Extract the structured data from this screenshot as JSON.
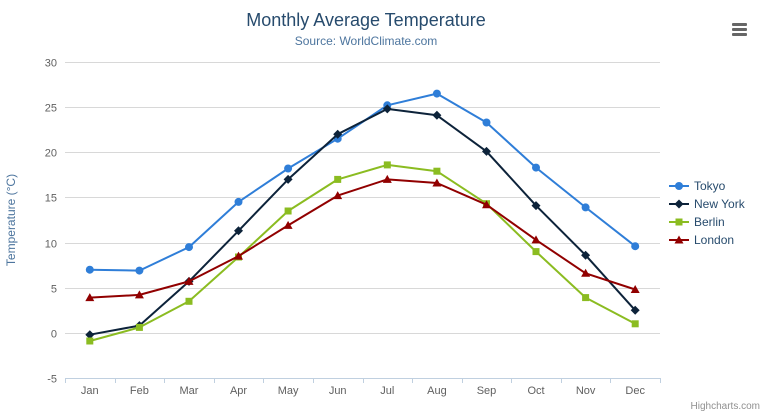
{
  "credit": "Highcharts.com",
  "colors": {
    "title": "#274b6d",
    "subtitle": "#4d759e",
    "axis_labels": "#606060",
    "axis_title": "#4d759e",
    "grid": "#d8d8d8",
    "axis_line": "#c0d0e0",
    "legend_text": "#274b6d",
    "credit": "#909090",
    "menu_icon": "#666666"
  },
  "chart_data": {
    "type": "line",
    "title": "Monthly Average Temperature",
    "subtitle": "Source: WorldClimate.com",
    "xlabel": "",
    "ylabel": "Temperature (°C)",
    "categories": [
      "Jan",
      "Feb",
      "Mar",
      "Apr",
      "May",
      "Jun",
      "Jul",
      "Aug",
      "Sep",
      "Oct",
      "Nov",
      "Dec"
    ],
    "ylim": [
      -5,
      30
    ],
    "y_ticks": [
      -5,
      0,
      5,
      10,
      15,
      20,
      25,
      30
    ],
    "grid": true,
    "legend_position": "right",
    "series": [
      {
        "name": "Tokyo",
        "color": "#2f7ed8",
        "marker": "circle",
        "values": [
          7.0,
          6.9,
          9.5,
          14.5,
          18.2,
          21.5,
          25.2,
          26.5,
          23.3,
          18.3,
          13.9,
          9.6
        ]
      },
      {
        "name": "New York",
        "color": "#0d233a",
        "marker": "diamond",
        "values": [
          -0.2,
          0.8,
          5.7,
          11.3,
          17.0,
          22.0,
          24.8,
          24.1,
          20.1,
          14.1,
          8.6,
          2.5
        ]
      },
      {
        "name": "Berlin",
        "color": "#8bbc21",
        "marker": "square",
        "values": [
          -0.9,
          0.6,
          3.5,
          8.4,
          13.5,
          17.0,
          18.6,
          17.9,
          14.3,
          9.0,
          3.9,
          1.0
        ]
      },
      {
        "name": "London",
        "color": "#910000",
        "marker": "triangle",
        "values": [
          3.9,
          4.2,
          5.7,
          8.5,
          11.9,
          15.2,
          17.0,
          16.6,
          14.2,
          10.3,
          6.6,
          4.8
        ]
      }
    ]
  }
}
